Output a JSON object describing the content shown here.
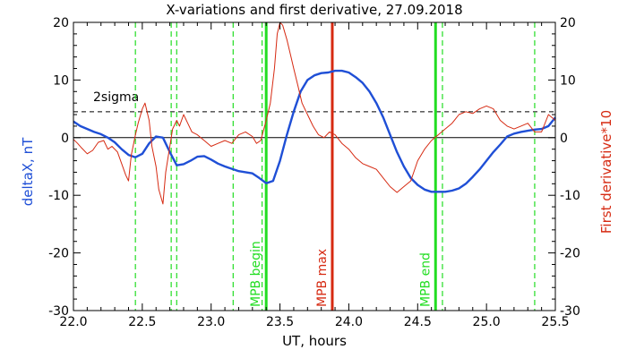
{
  "chart_data": {
    "type": "line",
    "title": "X-variations and first derivative, 27.09.2018",
    "xlabel": "UT, hours",
    "ylabel_left": "deltaX, nT",
    "ylabel_right": "First derivative*10",
    "xlim": [
      22.0,
      25.5
    ],
    "ylim": [
      -30,
      20
    ],
    "xticks": [
      "22.0",
      "22.5",
      "23.0",
      "23.5",
      "24.0",
      "24.5",
      "25.0",
      "25.5"
    ],
    "xtick_values": [
      22.0,
      22.5,
      23.0,
      23.5,
      24.0,
      24.5,
      25.0,
      25.5
    ],
    "yticks": [
      "-30",
      "-20",
      "-10",
      "0",
      "10",
      "20"
    ],
    "ytick_values": [
      -30,
      -20,
      -10,
      0,
      10,
      20
    ],
    "threshold": {
      "label": "2sigma",
      "value": 4.5
    },
    "colors": {
      "deltaX": "#1f4fd6",
      "derivative": "#d62a12",
      "markers": "#22dd22",
      "max": "#d62a12"
    },
    "series": [
      {
        "name": "deltaX",
        "axis": "left",
        "x": [
          22.0,
          22.05,
          22.1,
          22.15,
          22.2,
          22.25,
          22.3,
          22.35,
          22.4,
          22.45,
          22.5,
          22.55,
          22.6,
          22.65,
          22.7,
          22.75,
          22.8,
          22.85,
          22.9,
          22.95,
          23.0,
          23.05,
          23.1,
          23.15,
          23.2,
          23.25,
          23.3,
          23.35,
          23.4,
          23.45,
          23.5,
          23.55,
          23.6,
          23.65,
          23.7,
          23.75,
          23.8,
          23.85,
          23.9,
          23.95,
          24.0,
          24.05,
          24.1,
          24.15,
          24.2,
          24.25,
          24.3,
          24.35,
          24.4,
          24.45,
          24.5,
          24.55,
          24.6,
          24.65,
          24.7,
          24.75,
          24.8,
          24.85,
          24.9,
          24.95,
          25.0,
          25.05,
          25.1,
          25.15,
          25.2,
          25.25,
          25.3,
          25.35,
          25.4,
          25.45,
          25.5
        ],
        "values": [
          2.8,
          2.0,
          1.5,
          1.0,
          0.6,
          0.0,
          -0.8,
          -2.0,
          -3.0,
          -3.4,
          -2.8,
          -1.0,
          0.2,
          0.0,
          -2.5,
          -4.8,
          -4.6,
          -4.0,
          -3.3,
          -3.2,
          -3.8,
          -4.5,
          -5.0,
          -5.4,
          -5.8,
          -6.0,
          -6.2,
          -7.0,
          -7.9,
          -7.5,
          -4.0,
          0.5,
          4.5,
          8.0,
          10.0,
          10.8,
          11.2,
          11.3,
          11.6,
          11.6,
          11.3,
          10.5,
          9.5,
          8.0,
          6.0,
          3.5,
          0.5,
          -2.5,
          -5.0,
          -7.0,
          -8.2,
          -9.0,
          -9.4,
          -9.4,
          -9.4,
          -9.2,
          -8.8,
          -8.0,
          -6.8,
          -5.5,
          -4.0,
          -2.5,
          -1.2,
          0.2,
          0.7,
          1.0,
          1.2,
          1.4,
          1.5,
          2.0,
          3.5
        ]
      },
      {
        "name": "First derivative*10",
        "axis": "right",
        "x": [
          22.0,
          22.03,
          22.06,
          22.1,
          22.14,
          22.18,
          22.22,
          22.25,
          22.28,
          22.32,
          22.35,
          22.38,
          22.4,
          22.42,
          22.45,
          22.47,
          22.5,
          22.52,
          22.55,
          22.57,
          22.6,
          22.62,
          22.65,
          22.67,
          22.7,
          22.72,
          22.75,
          22.77,
          22.8,
          22.83,
          22.86,
          22.9,
          22.95,
          23.0,
          23.05,
          23.1,
          23.15,
          23.2,
          23.25,
          23.3,
          23.33,
          23.36,
          23.4,
          23.43,
          23.46,
          23.48,
          23.5,
          23.52,
          23.55,
          23.58,
          23.6,
          23.63,
          23.66,
          23.7,
          23.74,
          23.78,
          23.82,
          23.86,
          23.9,
          23.95,
          24.0,
          24.05,
          24.1,
          24.15,
          24.2,
          24.25,
          24.3,
          24.35,
          24.4,
          24.45,
          24.5,
          24.55,
          24.6,
          24.65,
          24.7,
          24.75,
          24.8,
          24.85,
          24.9,
          24.95,
          25.0,
          25.05,
          25.1,
          25.15,
          25.2,
          25.25,
          25.3,
          25.35,
          25.4,
          25.45,
          25.5
        ],
        "values": [
          -0.3,
          -1.0,
          -1.8,
          -2.8,
          -2.2,
          -0.8,
          -0.5,
          -2.0,
          -1.5,
          -2.5,
          -4.5,
          -6.5,
          -7.5,
          -3.0,
          0.5,
          2.5,
          5.0,
          6.0,
          3.0,
          -1.5,
          -5.0,
          -9.0,
          -11.5,
          -6.0,
          -1.5,
          1.5,
          3.0,
          2.0,
          4.0,
          2.5,
          1.0,
          0.5,
          -0.5,
          -1.5,
          -1.0,
          -0.5,
          -1.0,
          0.5,
          1.0,
          0.2,
          -1.0,
          -0.5,
          3.0,
          6.0,
          12.0,
          18.0,
          20.0,
          19.5,
          17.0,
          14.0,
          12.0,
          9.0,
          6.0,
          4.0,
          2.0,
          0.5,
          0.0,
          1.0,
          0.5,
          -1.0,
          -2.0,
          -3.5,
          -4.5,
          -5.0,
          -5.5,
          -7.0,
          -8.5,
          -9.5,
          -8.5,
          -7.5,
          -4.0,
          -2.0,
          -0.5,
          0.5,
          1.5,
          2.5,
          4.0,
          4.5,
          4.2,
          5.0,
          5.5,
          5.0,
          3.0,
          2.0,
          1.5,
          2.0,
          2.5,
          1.0,
          1.0,
          4.0,
          3.0
        ]
      }
    ],
    "vlines": [
      {
        "x": 22.45,
        "style": "dashed",
        "color": "#22dd22",
        "label": ""
      },
      {
        "x": 22.71,
        "style": "dashed",
        "color": "#22dd22",
        "label": ""
      },
      {
        "x": 22.75,
        "style": "dashed",
        "color": "#22dd22",
        "label": ""
      },
      {
        "x": 23.16,
        "style": "dashed",
        "color": "#22dd22",
        "label": ""
      },
      {
        "x": 23.37,
        "style": "dashed",
        "color": "#22dd22",
        "label": ""
      },
      {
        "x": 23.4,
        "style": "solid",
        "color": "#22dd22",
        "label": "MPB begin"
      },
      {
        "x": 23.88,
        "style": "solid",
        "color": "#d62a12",
        "label": "MPB max"
      },
      {
        "x": 24.63,
        "style": "solid",
        "color": "#22dd22",
        "label": "MPB end"
      },
      {
        "x": 24.68,
        "style": "dashed",
        "color": "#22dd22",
        "label": ""
      },
      {
        "x": 25.35,
        "style": "dashed",
        "color": "#22dd22",
        "label": ""
      }
    ]
  }
}
